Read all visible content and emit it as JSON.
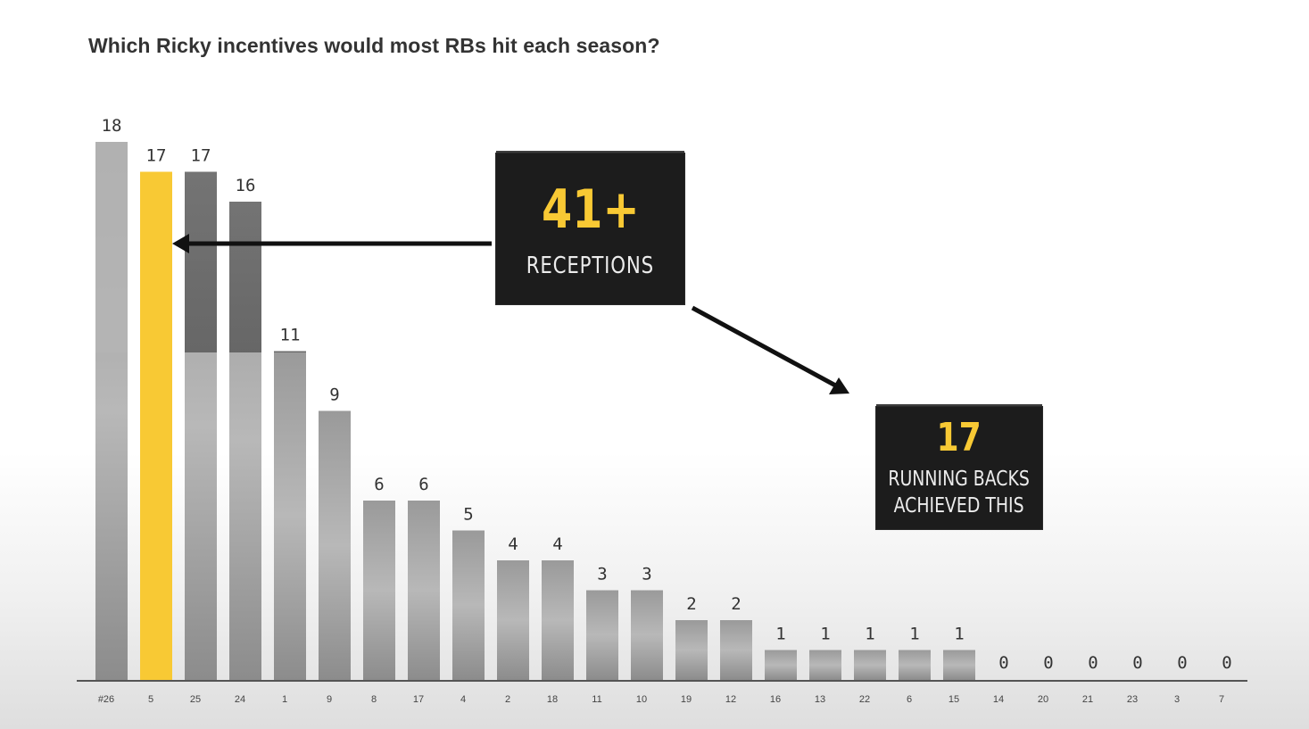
{
  "title": "Which Ricky incentives would most RBs hit each season?",
  "chart_data": {
    "type": "bar",
    "title": "Which Ricky incentives would most RBs hit each season?",
    "categories": [
      "#26",
      "5",
      "25",
      "24",
      "1",
      "9",
      "8",
      "17",
      "4",
      "2",
      "18",
      "11",
      "10",
      "19",
      "12",
      "16",
      "13",
      "22",
      "6",
      "15",
      "14",
      "20",
      "21",
      "23",
      "3",
      "7"
    ],
    "values": [
      18,
      17,
      17,
      16,
      11,
      9,
      6,
      6,
      5,
      4,
      4,
      3,
      3,
      2,
      2,
      1,
      1,
      1,
      1,
      1,
      0,
      0,
      0,
      0,
      0,
      0
    ],
    "highlight_category": "5",
    "highlight_color": "#f8c934",
    "bar_color": "#8a8a8a",
    "xlabel": "",
    "ylabel": "",
    "grid": false,
    "legend": "none"
  },
  "callouts": {
    "receptions": {
      "big": "41+",
      "small": "RECEPTIONS"
    },
    "running_backs": {
      "big": "17",
      "line1": "RUNNING BACKS",
      "line2": "ACHIEVED THIS"
    }
  }
}
